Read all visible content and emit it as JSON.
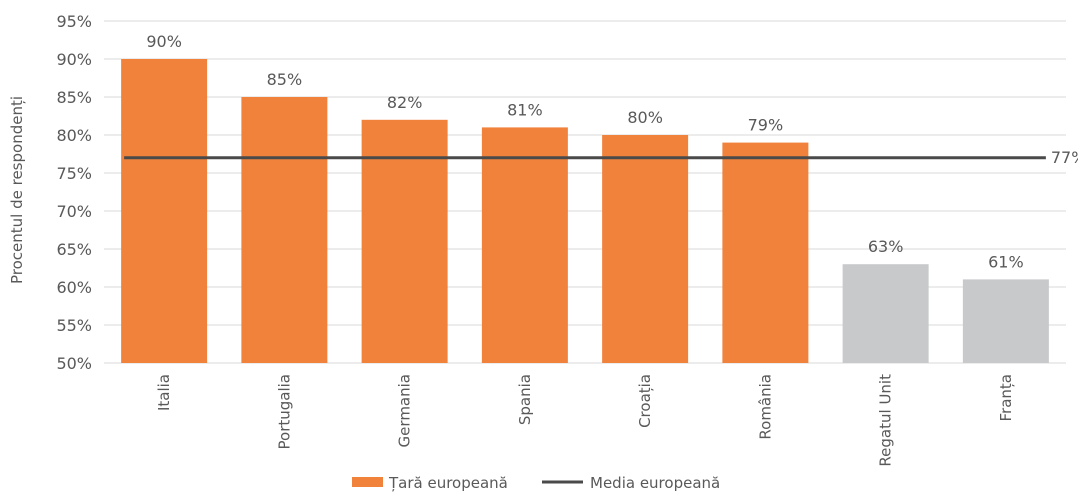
{
  "chart_data": {
    "type": "bar",
    "categories": [
      "Italia",
      "Portugalia",
      "Germania",
      "Spania",
      "Croația",
      "România",
      "Regatul Unit",
      "Franța"
    ],
    "values": [
      90,
      85,
      82,
      81,
      80,
      79,
      63,
      61
    ],
    "data_labels": [
      "90%",
      "85%",
      "82%",
      "81%",
      "80%",
      "79%",
      "63%",
      "61%"
    ],
    "highlighted": [
      true,
      true,
      true,
      true,
      true,
      true,
      false,
      false
    ],
    "reference_line": {
      "name": "Media europeană",
      "value": 77,
      "label": "77%"
    },
    "ylabel": "Procentul de respondenți",
    "ylim": [
      50,
      95
    ],
    "yticks": [
      "50%",
      "55%",
      "60%",
      "65%",
      "70%",
      "75%",
      "80%",
      "85%",
      "90%",
      "95%"
    ],
    "grid": true,
    "legend": {
      "position": "bottom",
      "items": [
        {
          "label": "Țară europeană",
          "kind": "bar"
        },
        {
          "label": "Media europeană",
          "kind": "line"
        }
      ]
    },
    "colors": {
      "highlight": "#f0823c",
      "other": "#c8c9cb",
      "line": "#4a4a4a",
      "grid": "#d9d9d9",
      "text": "#595959"
    }
  }
}
